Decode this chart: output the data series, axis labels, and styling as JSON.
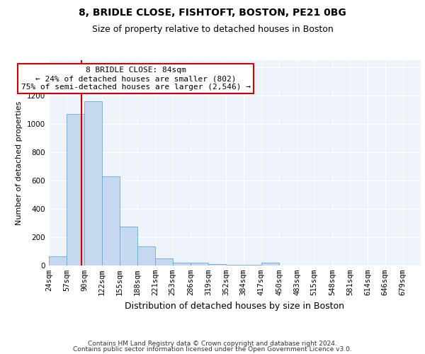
{
  "title1": "8, BRIDLE CLOSE, FISHTOFT, BOSTON, PE21 0BG",
  "title2": "Size of property relative to detached houses in Boston",
  "xlabel": "Distribution of detached houses by size in Boston",
  "ylabel": "Number of detached properties",
  "footer1": "Contains HM Land Registry data © Crown copyright and database right 2024.",
  "footer2": "Contains public sector information licensed under the Open Government Licence v3.0.",
  "bin_labels": [
    "24sqm",
    "57sqm",
    "90sqm",
    "122sqm",
    "155sqm",
    "188sqm",
    "221sqm",
    "253sqm",
    "286sqm",
    "319sqm",
    "352sqm",
    "384sqm",
    "417sqm",
    "450sqm",
    "483sqm",
    "515sqm",
    "548sqm",
    "581sqm",
    "614sqm",
    "646sqm",
    "679sqm"
  ],
  "bin_edges": [
    24,
    57,
    90,
    122,
    155,
    188,
    221,
    253,
    286,
    319,
    352,
    384,
    417,
    450,
    483,
    515,
    548,
    581,
    614,
    646,
    679,
    712
  ],
  "bar_values": [
    65,
    1070,
    1160,
    630,
    275,
    135,
    50,
    20,
    20,
    8,
    5,
    4,
    20,
    0,
    0,
    0,
    0,
    0,
    0,
    0,
    0
  ],
  "bar_color": "#c5d8f0",
  "bar_edgecolor": "#6aaad4",
  "property_size": 84,
  "annotation_title": "8 BRIDLE CLOSE: 84sqm",
  "annotation_line1": "← 24% of detached houses are smaller (802)",
  "annotation_line2": "75% of semi-detached houses are larger (2,546) →",
  "annotation_box_color": "#ffffff",
  "annotation_box_edgecolor": "#cc0000",
  "vline_color": "#cc0000",
  "ylim": [
    0,
    1450
  ],
  "background_color": "#eef2fb",
  "grid_color": "#ffffff",
  "title1_fontsize": 10,
  "title2_fontsize": 9,
  "axis_label_fontsize": 8,
  "tick_fontsize": 7.5,
  "annotation_fontsize": 8,
  "footer_fontsize": 6.5
}
